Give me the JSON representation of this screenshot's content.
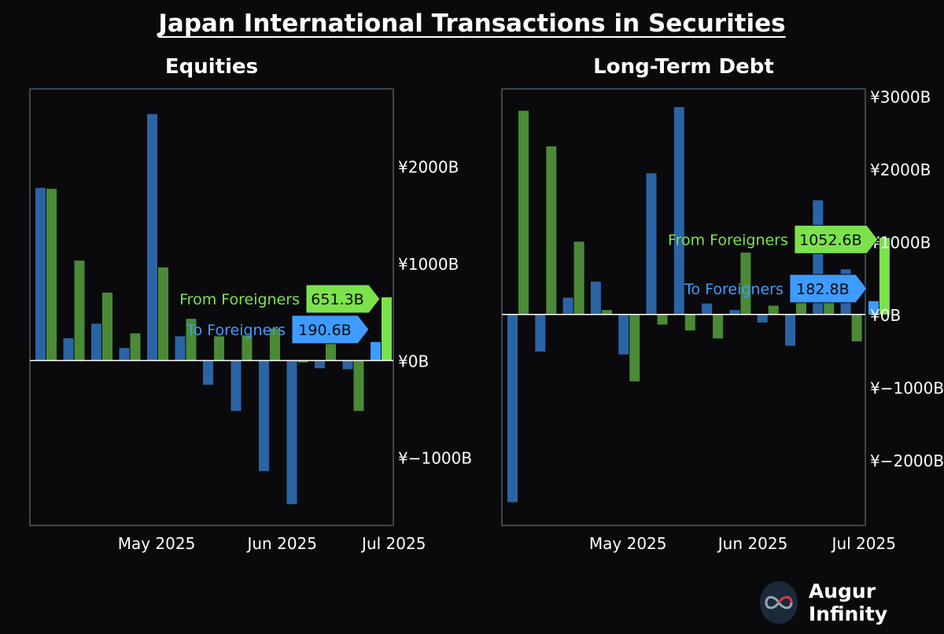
{
  "title": "Japan International Transactions in Securities",
  "brand": {
    "name": "Augur Infinity"
  },
  "colors": {
    "to_foreigners": "#2b64a5",
    "from_foreigners": "#4a8a36",
    "to_label": "#3e9bff",
    "from_label": "#7ce24c",
    "frame": "#3a4650"
  },
  "chart_data": [
    {
      "type": "bar",
      "title": "Equities",
      "ylim": [
        -1700,
        2800
      ],
      "yticks": [
        -1000,
        0,
        1000,
        2000
      ],
      "ytick_labels": [
        "¥−1000B",
        "¥0B",
        "¥1000B",
        "¥2000B"
      ],
      "xticks": [
        {
          "label": "May 2025",
          "index": 4.0
        },
        {
          "label": "Jun 2025",
          "index": 8.5
        },
        {
          "label": "Jul 2025",
          "index": 12.5
        }
      ],
      "series": [
        {
          "name": "To Foreigners",
          "role": "to",
          "values": [
            1780,
            230,
            380,
            130,
            2540,
            250,
            -250,
            -520,
            -1140,
            -1480,
            -80,
            -90,
            190.6
          ]
        },
        {
          "name": "From Foreigners",
          "role": "from",
          "values": [
            1770,
            1030,
            700,
            280,
            960,
            430,
            250,
            260,
            330,
            -20,
            290,
            -520,
            651.3
          ]
        }
      ],
      "annotations": [
        {
          "series": "From Foreigners",
          "value_label": "651.3B"
        },
        {
          "series": "To Foreigners",
          "value_label": "190.6B"
        }
      ]
    },
    {
      "type": "bar",
      "title": "Long-Term Debt",
      "ylim": [
        -2900,
        3100
      ],
      "yticks": [
        -2000,
        -1000,
        0,
        1000,
        2000,
        3000
      ],
      "ytick_labels": [
        "¥−2000B",
        "¥−1000B",
        "¥0B",
        "¥1000B",
        "¥2000B",
        "¥3000B"
      ],
      "xticks": [
        {
          "label": "May 2025",
          "index": 4.0
        },
        {
          "label": "Jun 2025",
          "index": 8.5
        },
        {
          "label": "Jul 2025",
          "index": 12.5
        }
      ],
      "series": [
        {
          "name": "To Foreigners",
          "role": "to",
          "values": [
            -2580,
            -510,
            230,
            450,
            -550,
            1940,
            2850,
            150,
            60,
            -110,
            -430,
            1570,
            620,
            182.8
          ]
        },
        {
          "name": "From Foreigners",
          "role": "from",
          "values": [
            2800,
            2310,
            1000,
            60,
            -920,
            -140,
            -220,
            -330,
            850,
            120,
            390,
            430,
            -370,
            1052.6
          ]
        }
      ],
      "annotations": [
        {
          "series": "From Foreigners",
          "value_label": "1052.6B"
        },
        {
          "series": "To Foreigners",
          "value_label": "182.8B"
        }
      ]
    }
  ]
}
